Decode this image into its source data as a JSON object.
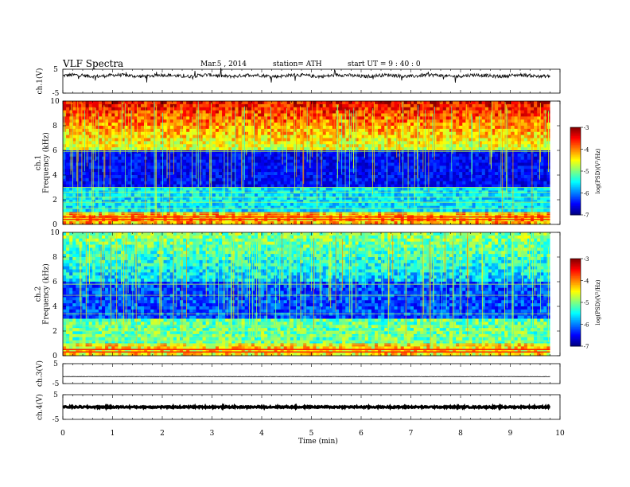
{
  "header": {
    "title": "VLF  Spectra",
    "date": "Mar.5  , 2014",
    "station": "station= ATH",
    "start": "start  UT =   9 : 40 : 0"
  },
  "chart_data": [
    {
      "type": "line",
      "ylabel": "ch.1(V)",
      "ylim": [
        -5,
        5
      ],
      "y_ticks": [
        "5",
        "-5"
      ],
      "xlim": [
        0,
        10
      ],
      "description_values": {
        "baseline_V": 2.3
      }
    },
    {
      "type": "heatmap",
      "ylabel": "Frequency  (kHz)",
      "channel_label": "ch.1",
      "ylim": [
        0,
        10
      ],
      "y_ticks": [
        "0",
        "2",
        "4",
        "6",
        "8",
        "10"
      ],
      "xlim": [
        0,
        10
      ],
      "data_end_min": 9.8,
      "colorbar": {
        "label": "log(PSD)(V²/Hz)",
        "range": [
          -7,
          -3
        ],
        "ticks": [
          "-3",
          "-4",
          "-5",
          "-6",
          "-7"
        ]
      }
    },
    {
      "type": "heatmap",
      "ylabel": "Frequency  (kHz)",
      "channel_label": "ch.2",
      "ylim": [
        0,
        10
      ],
      "y_ticks": [
        "0",
        "2",
        "4",
        "6",
        "8",
        "10"
      ],
      "xlim": [
        0,
        10
      ],
      "data_end_min": 9.8,
      "colorbar": {
        "label": "log(PSD)(V²/Hz)",
        "range": [
          -7,
          -3
        ],
        "ticks": [
          "-3",
          "-4",
          "-5",
          "-6",
          "-7"
        ]
      }
    },
    {
      "type": "line",
      "ylabel": "ch.3(V)",
      "ylim": [
        -5,
        5
      ],
      "y_ticks": [
        "5",
        "-5"
      ],
      "xlim": [
        0,
        10
      ],
      "description_values": {
        "baseline_V": -1.5
      }
    },
    {
      "type": "line",
      "ylabel": "ch.4(V)",
      "ylim": [
        -5,
        5
      ],
      "y_ticks": [
        "5",
        "-5"
      ],
      "xlim": [
        0,
        10
      ],
      "description_values": {
        "baseline_V": 0
      }
    }
  ],
  "x_axis": {
    "label": "Time  (min)",
    "ticks": [
      "0",
      "1",
      "2",
      "3",
      "4",
      "5",
      "6",
      "7",
      "8",
      "9",
      "10"
    ]
  }
}
